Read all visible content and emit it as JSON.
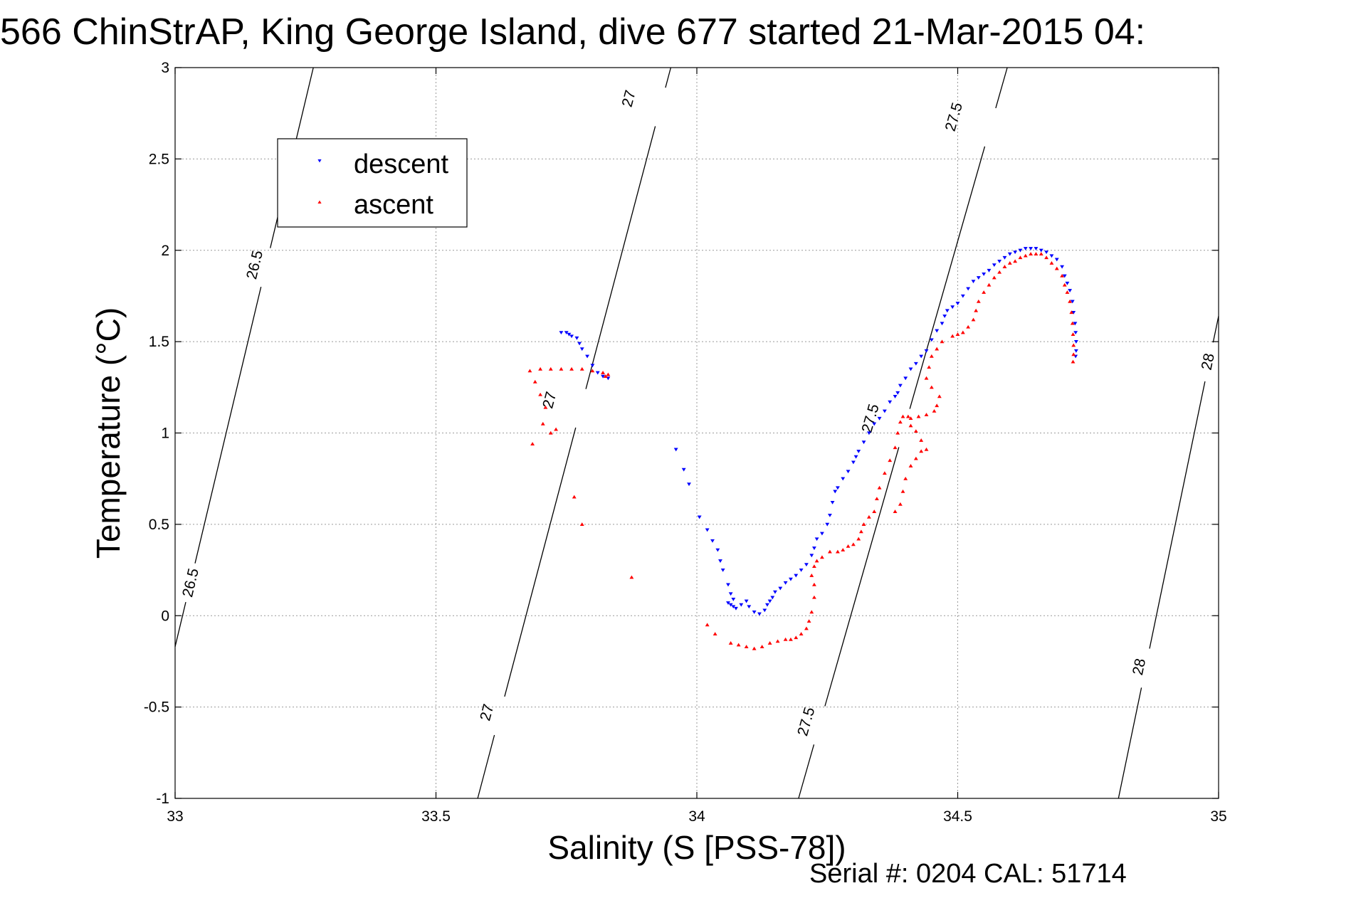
{
  "title": "566 ChinStrAP, King George Island, dive 677 started 21-Mar-2015 04:",
  "footer": "Serial #: 0204  CAL: 51714",
  "chart_data": {
    "type": "scatter",
    "title": "566 ChinStrAP, King George Island, dive 677 started 21-Mar-2015 04:",
    "xlabel": "Salinity (S [PSS-78])",
    "ylabel": "Temperature (°C)",
    "xlim": [
      33,
      35
    ],
    "ylim": [
      -1,
      3
    ],
    "x_ticks": [
      33,
      33.5,
      34,
      34.5,
      35
    ],
    "x_tick_labels": [
      "33",
      "33.5",
      "34",
      "34.5",
      "35"
    ],
    "y_ticks": [
      -1,
      -0.5,
      0,
      0.5,
      1,
      1.5,
      2,
      2.5,
      3
    ],
    "y_tick_labels": [
      "-1",
      "-0.5",
      "0",
      "0.5",
      "1",
      "1.5",
      "2",
      "2.5",
      "3"
    ],
    "grid": true,
    "legend_position": "top-left",
    "density_contours": [
      {
        "label": "26.5",
        "points": [
          [
            33.0,
            -0.17
          ],
          [
            33.265,
            3.0
          ]
        ],
        "label_positions": [
          [
            33.03,
            0.18
          ],
          [
            33.153,
            1.92
          ]
        ]
      },
      {
        "label": "27",
        "points": [
          [
            33.58,
            -1.0
          ],
          [
            33.95,
            3.0
          ]
        ],
        "label_positions": [
          [
            33.598,
            -0.53
          ],
          [
            33.718,
            1.18
          ],
          [
            33.87,
            2.83
          ]
        ]
      },
      {
        "label": "27.5",
        "points": [
          [
            34.195,
            -1.0
          ],
          [
            34.595,
            3.0
          ]
        ],
        "label_positions": [
          [
            34.21,
            -0.58
          ],
          [
            34.333,
            1.08
          ],
          [
            34.493,
            2.73
          ]
        ]
      },
      {
        "label": "28",
        "points": [
          [
            34.808,
            -1.0
          ],
          [
            35.0,
            1.64
          ]
        ],
        "label_positions": [
          [
            34.848,
            -0.28
          ],
          [
            34.98,
            1.39
          ]
        ]
      }
    ],
    "series": [
      {
        "name": "descent",
        "color": "#0000ff",
        "marker": "triangle-down",
        "points": [
          [
            33.74,
            1.55
          ],
          [
            33.75,
            1.55
          ],
          [
            33.755,
            1.54
          ],
          [
            33.76,
            1.53
          ],
          [
            33.77,
            1.52
          ],
          [
            33.775,
            1.49
          ],
          [
            33.78,
            1.46
          ],
          [
            33.79,
            1.42
          ],
          [
            33.8,
            1.37
          ],
          [
            33.81,
            1.33
          ],
          [
            33.82,
            1.31
          ],
          [
            33.83,
            1.3
          ],
          [
            33.96,
            0.91
          ],
          [
            33.975,
            0.8
          ],
          [
            33.985,
            0.72
          ],
          [
            34.005,
            0.54
          ],
          [
            34.02,
            0.47
          ],
          [
            34.03,
            0.41
          ],
          [
            34.04,
            0.36
          ],
          [
            34.045,
            0.3
          ],
          [
            34.05,
            0.25
          ],
          [
            34.06,
            0.17
          ],
          [
            34.065,
            0.12
          ],
          [
            34.07,
            0.09
          ],
          [
            34.06,
            0.07
          ],
          [
            34.065,
            0.06
          ],
          [
            34.07,
            0.05
          ],
          [
            34.075,
            0.04
          ],
          [
            34.085,
            0.06
          ],
          [
            34.095,
            0.08
          ],
          [
            34.1,
            0.05
          ],
          [
            34.11,
            0.02
          ],
          [
            34.12,
            0.01
          ],
          [
            34.13,
            0.03
          ],
          [
            34.135,
            0.06
          ],
          [
            34.14,
            0.08
          ],
          [
            34.145,
            0.1
          ],
          [
            34.15,
            0.13
          ],
          [
            34.16,
            0.15
          ],
          [
            34.17,
            0.18
          ],
          [
            34.18,
            0.2
          ],
          [
            34.19,
            0.22
          ],
          [
            34.2,
            0.25
          ],
          [
            34.21,
            0.28
          ],
          [
            34.22,
            0.33
          ],
          [
            34.225,
            0.37
          ],
          [
            34.23,
            0.42
          ],
          [
            34.24,
            0.45
          ],
          [
            34.25,
            0.5
          ],
          [
            34.255,
            0.55
          ],
          [
            34.26,
            0.62
          ],
          [
            34.265,
            0.68
          ],
          [
            34.27,
            0.7
          ],
          [
            34.28,
            0.75
          ],
          [
            34.29,
            0.79
          ],
          [
            34.3,
            0.84
          ],
          [
            34.305,
            0.87
          ],
          [
            34.31,
            0.9
          ],
          [
            34.32,
            0.95
          ],
          [
            34.33,
            1.0
          ],
          [
            34.34,
            1.05
          ],
          [
            34.35,
            1.08
          ],
          [
            34.36,
            1.12
          ],
          [
            34.37,
            1.17
          ],
          [
            34.38,
            1.2
          ],
          [
            34.385,
            1.22
          ],
          [
            34.39,
            1.26
          ],
          [
            34.4,
            1.3
          ],
          [
            34.41,
            1.35
          ],
          [
            34.42,
            1.38
          ],
          [
            34.43,
            1.42
          ],
          [
            34.44,
            1.45
          ],
          [
            34.45,
            1.51
          ],
          [
            34.46,
            1.56
          ],
          [
            34.47,
            1.6
          ],
          [
            34.475,
            1.64
          ],
          [
            34.48,
            1.67
          ],
          [
            34.49,
            1.69
          ],
          [
            34.5,
            1.71
          ],
          [
            34.51,
            1.75
          ],
          [
            34.52,
            1.79
          ],
          [
            34.53,
            1.83
          ],
          [
            34.54,
            1.85
          ],
          [
            34.55,
            1.87
          ],
          [
            34.56,
            1.89
          ],
          [
            34.57,
            1.92
          ],
          [
            34.58,
            1.94
          ],
          [
            34.59,
            1.96
          ],
          [
            34.6,
            1.98
          ],
          [
            34.61,
            1.99
          ],
          [
            34.62,
            2.0
          ],
          [
            34.63,
            2.01
          ],
          [
            34.64,
            2.01
          ],
          [
            34.65,
            2.01
          ],
          [
            34.66,
            2.0
          ],
          [
            34.67,
            1.99
          ],
          [
            34.68,
            1.97
          ],
          [
            34.69,
            1.95
          ],
          [
            34.7,
            1.91
          ],
          [
            34.705,
            1.86
          ],
          [
            34.71,
            1.82
          ],
          [
            34.715,
            1.78
          ],
          [
            34.72,
            1.72
          ],
          [
            34.722,
            1.66
          ],
          [
            34.725,
            1.6
          ],
          [
            34.726,
            1.55
          ],
          [
            34.727,
            1.5
          ],
          [
            34.727,
            1.45
          ],
          [
            34.726,
            1.42
          ]
        ]
      },
      {
        "name": "ascent",
        "color": "#ff0000",
        "marker": "triangle-up",
        "points": [
          [
            33.68,
            1.34
          ],
          [
            33.7,
            1.35
          ],
          [
            33.72,
            1.35
          ],
          [
            33.74,
            1.35
          ],
          [
            33.76,
            1.35
          ],
          [
            33.78,
            1.35
          ],
          [
            33.8,
            1.34
          ],
          [
            33.82,
            1.33
          ],
          [
            33.83,
            1.32
          ],
          [
            33.825,
            1.31
          ],
          [
            33.69,
            1.28
          ],
          [
            33.7,
            1.21
          ],
          [
            33.71,
            1.14
          ],
          [
            33.705,
            1.05
          ],
          [
            33.72,
            1.0
          ],
          [
            33.73,
            1.02
          ],
          [
            33.685,
            0.94
          ],
          [
            33.765,
            0.65
          ],
          [
            33.78,
            0.5
          ],
          [
            33.875,
            0.21
          ],
          [
            34.02,
            -0.05
          ],
          [
            34.035,
            -0.1
          ],
          [
            34.065,
            -0.15
          ],
          [
            34.08,
            -0.16
          ],
          [
            34.095,
            -0.17
          ],
          [
            34.11,
            -0.18
          ],
          [
            34.125,
            -0.17
          ],
          [
            34.14,
            -0.15
          ],
          [
            34.155,
            -0.14
          ],
          [
            34.17,
            -0.13
          ],
          [
            34.18,
            -0.13
          ],
          [
            34.19,
            -0.12
          ],
          [
            34.2,
            -0.1
          ],
          [
            34.21,
            -0.07
          ],
          [
            34.215,
            -0.03
          ],
          [
            34.22,
            0.02
          ],
          [
            34.225,
            0.1
          ],
          [
            34.225,
            0.17
          ],
          [
            34.22,
            0.22
          ],
          [
            34.225,
            0.27
          ],
          [
            34.23,
            0.3
          ],
          [
            34.24,
            0.32
          ],
          [
            34.255,
            0.35
          ],
          [
            34.27,
            0.35
          ],
          [
            34.28,
            0.36
          ],
          [
            34.29,
            0.38
          ],
          [
            34.3,
            0.39
          ],
          [
            34.31,
            0.42
          ],
          [
            34.315,
            0.46
          ],
          [
            34.32,
            0.5
          ],
          [
            34.33,
            0.54
          ],
          [
            34.34,
            0.57
          ],
          [
            34.345,
            0.64
          ],
          [
            34.35,
            0.7
          ],
          [
            34.36,
            0.78
          ],
          [
            34.37,
            0.85
          ],
          [
            34.38,
            0.92
          ],
          [
            34.385,
            1.0
          ],
          [
            34.39,
            1.06
          ],
          [
            34.395,
            1.09
          ],
          [
            34.405,
            1.09
          ],
          [
            34.41,
            1.04
          ],
          [
            34.42,
            1.01
          ],
          [
            34.43,
            0.96
          ],
          [
            34.44,
            0.91
          ],
          [
            34.43,
            0.9
          ],
          [
            34.42,
            0.86
          ],
          [
            34.41,
            0.82
          ],
          [
            34.4,
            0.75
          ],
          [
            34.395,
            0.68
          ],
          [
            34.39,
            0.61
          ],
          [
            34.38,
            0.57
          ],
          [
            34.41,
            1.08
          ],
          [
            34.425,
            1.09
          ],
          [
            34.44,
            1.1
          ],
          [
            34.455,
            1.12
          ],
          [
            34.46,
            1.15
          ],
          [
            34.465,
            1.2
          ],
          [
            34.45,
            1.25
          ],
          [
            34.44,
            1.3
          ],
          [
            34.445,
            1.36
          ],
          [
            34.45,
            1.42
          ],
          [
            34.46,
            1.46
          ],
          [
            34.47,
            1.5
          ],
          [
            34.49,
            1.53
          ],
          [
            34.5,
            1.54
          ],
          [
            34.51,
            1.55
          ],
          [
            34.52,
            1.58
          ],
          [
            34.53,
            1.62
          ],
          [
            34.535,
            1.67
          ],
          [
            34.54,
            1.72
          ],
          [
            34.55,
            1.77
          ],
          [
            34.56,
            1.81
          ],
          [
            34.57,
            1.85
          ],
          [
            34.58,
            1.88
          ],
          [
            34.59,
            1.91
          ],
          [
            34.6,
            1.93
          ],
          [
            34.61,
            1.94
          ],
          [
            34.62,
            1.96
          ],
          [
            34.63,
            1.97
          ],
          [
            34.64,
            1.98
          ],
          [
            34.65,
            1.98
          ],
          [
            34.66,
            1.98
          ],
          [
            34.67,
            1.96
          ],
          [
            34.68,
            1.93
          ],
          [
            34.69,
            1.9
          ],
          [
            34.7,
            1.86
          ],
          [
            34.705,
            1.81
          ],
          [
            34.71,
            1.77
          ],
          [
            34.715,
            1.72
          ],
          [
            34.718,
            1.66
          ],
          [
            34.72,
            1.6
          ],
          [
            34.721,
            1.54
          ],
          [
            34.722,
            1.48
          ],
          [
            34.722,
            1.43
          ],
          [
            34.721,
            1.39
          ]
        ]
      }
    ]
  }
}
